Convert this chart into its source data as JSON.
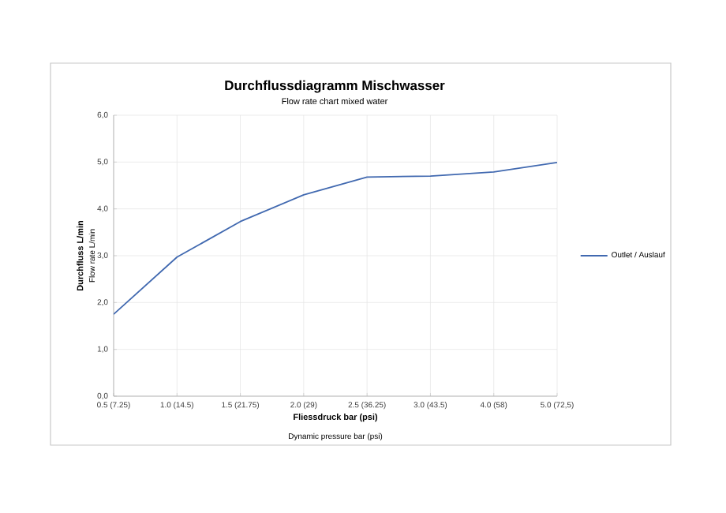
{
  "chart_data": {
    "type": "line",
    "title": "Durchflussdiagramm Mischwasser",
    "subtitle": "Flow rate chart mixed water",
    "xlabel": "Fliessdruck bar (psi)",
    "ylabel": "Durchfluss L/min",
    "annotations": [
      "Dynamic pressure bar (psi)",
      "Flow rate L/min"
    ],
    "categories": [
      "0.5 (7.25)",
      "1.0 (14.5)",
      "1.5 (21.75)",
      "2.0 (29)",
      "2.5 (36.25)",
      "3.0 (43.5)",
      "4.0 (58)",
      "5.0 (72,5)"
    ],
    "series": [
      {
        "name": "Outlet / Auslauf",
        "color": "#4169b0",
        "values": [
          1.75,
          2.97,
          3.73,
          4.3,
          4.68,
          4.7,
          4.79,
          4.99
        ]
      }
    ],
    "ylim": [
      0,
      6
    ],
    "yticks": [
      {
        "value": 0,
        "label": "0,0"
      },
      {
        "value": 1,
        "label": "1,0"
      },
      {
        "value": 2,
        "label": "2,0"
      },
      {
        "value": 3,
        "label": "3,0"
      },
      {
        "value": 4,
        "label": "4,0"
      },
      {
        "value": 5,
        "label": "5,0"
      },
      {
        "value": 6,
        "label": "6,0"
      }
    ],
    "grid": true,
    "legend": "right",
    "marker": "none",
    "line_style": "solid"
  }
}
